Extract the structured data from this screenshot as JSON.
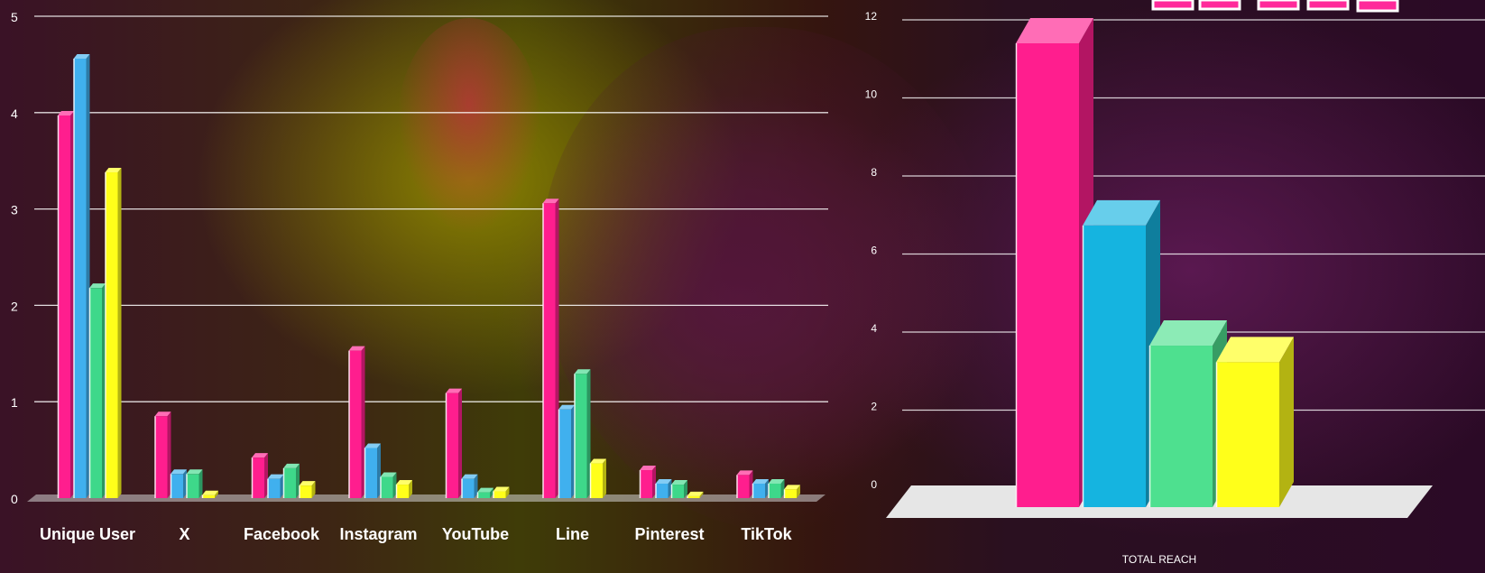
{
  "chart_data": [
    {
      "type": "bar",
      "categories": [
        "Unique User",
        "X",
        "Facebook",
        "Instagram",
        "YouTube",
        "Line",
        "Pinterest",
        "TikTok"
      ],
      "series": [
        {
          "values": [
            3.97,
            0.85,
            0.42,
            1.53,
            1.09,
            3.06,
            0.29,
            0.24
          ],
          "color": "#ff1e8e"
        },
        {
          "values": [
            4.56,
            0.25,
            0.2,
            0.52,
            0.2,
            0.92,
            0.15,
            0.15
          ],
          "color": "#40b0ee"
        },
        {
          "values": [
            2.18,
            0.25,
            0.31,
            0.22,
            0.06,
            1.29,
            0.14,
            0.15
          ],
          "color": "#3ed88a"
        },
        {
          "values": [
            3.38,
            0.03,
            0.13,
            0.14,
            0.07,
            0.36,
            0.02,
            0.09
          ],
          "color": "#ffff1a"
        }
      ],
      "ylim": [
        0,
        5
      ],
      "yticks": [
        "0",
        "1",
        "2",
        "3",
        "4",
        "5"
      ],
      "grid": true,
      "style": "3d"
    },
    {
      "type": "bar",
      "categories": [
        "TOTAL REACH"
      ],
      "series": [
        {
          "values": [
            11.2
          ],
          "color": "#ff1e8e"
        },
        {
          "values": [
            6.8
          ],
          "color": "#15b4e0"
        },
        {
          "values": [
            3.9
          ],
          "color": "#4ee08f"
        },
        {
          "values": [
            3.5
          ],
          "color": "#ffff1a"
        }
      ],
      "ylim": [
        0,
        12
      ],
      "yticks": [
        "0",
        "2",
        "4",
        "6",
        "8",
        "10",
        "12"
      ],
      "grid": true,
      "style": "3d"
    }
  ]
}
